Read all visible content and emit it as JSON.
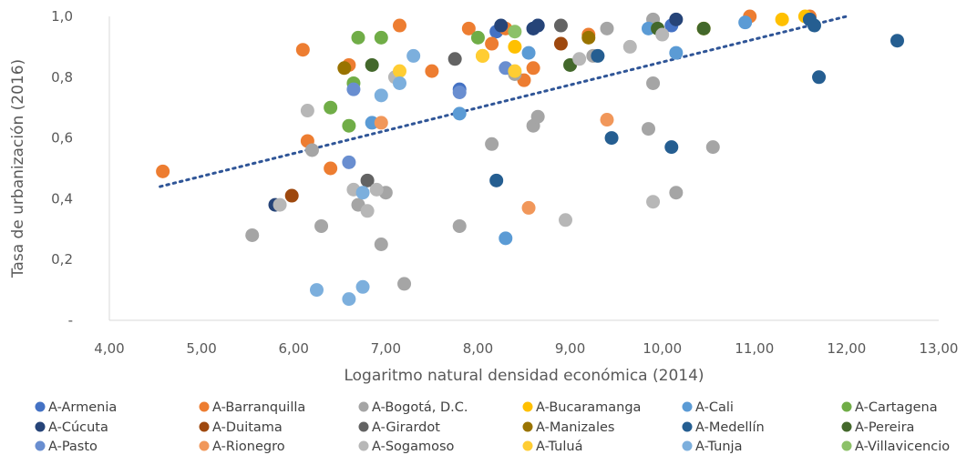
{
  "chart_data": {
    "type": "scatter",
    "xlabel": "Logaritmo natural densidad económica (2014)",
    "ylabel": "Tasa de urbanización (2016)",
    "xlim": [
      4.0,
      13.0
    ],
    "ylim": [
      0.0,
      1.0
    ],
    "x_ticks": [
      4.0,
      5.0,
      6.0,
      7.0,
      8.0,
      9.0,
      10.0,
      11.0,
      12.0,
      13.0
    ],
    "x_tick_labels": [
      "4,00",
      "5,00",
      "6,00",
      "7,00",
      "8,00",
      "9,00",
      "10,00",
      "11,00",
      "12,00",
      "13,00"
    ],
    "y_ticks": [
      0.0,
      0.2,
      0.4,
      0.6,
      0.8,
      1.0
    ],
    "y_tick_labels": [
      "-",
      "0,2",
      "0,4",
      "0,6",
      "0,8",
      "1,0"
    ],
    "grid": false,
    "legend_position": "bottom",
    "trendline": {
      "style": "dotted",
      "color": "#2f5597",
      "x": [
        4.55,
        12.0
      ],
      "y": [
        0.44,
        1.0
      ]
    },
    "series": [
      {
        "name": "A-Armenia",
        "color": "#4472c4",
        "points": [
          [
            8.2,
            0.95
          ],
          [
            8.65,
            0.97
          ],
          [
            10.1,
            0.97
          ],
          [
            8.6,
            0.96
          ],
          [
            7.8,
            0.76
          ]
        ]
      },
      {
        "name": "A-Barranquilla",
        "color": "#ed7d31",
        "points": [
          [
            4.58,
            0.49
          ],
          [
            6.1,
            0.89
          ],
          [
            6.15,
            0.59
          ],
          [
            6.4,
            0.5
          ],
          [
            6.6,
            0.84
          ],
          [
            7.15,
            0.97
          ],
          [
            7.5,
            0.82
          ],
          [
            7.9,
            0.96
          ],
          [
            8.15,
            0.91
          ],
          [
            8.3,
            0.96
          ],
          [
            8.6,
            0.83
          ],
          [
            8.5,
            0.79
          ],
          [
            9.2,
            0.94
          ],
          [
            10.95,
            1.0
          ],
          [
            11.6,
            1.0
          ]
        ]
      },
      {
        "name": "A-Bogotá, D.C.",
        "color": "#a5a5a5",
        "points": [
          [
            5.55,
            0.28
          ],
          [
            6.3,
            0.31
          ],
          [
            6.2,
            0.56
          ],
          [
            6.7,
            0.38
          ],
          [
            6.95,
            0.25
          ],
          [
            7.0,
            0.42
          ],
          [
            7.2,
            0.12
          ],
          [
            7.8,
            0.31
          ],
          [
            8.15,
            0.58
          ],
          [
            8.6,
            0.64
          ],
          [
            8.65,
            0.67
          ],
          [
            9.25,
            0.87
          ],
          [
            9.4,
            0.96
          ],
          [
            9.85,
            0.63
          ],
          [
            9.9,
            0.78
          ],
          [
            9.9,
            0.99
          ],
          [
            10.15,
            0.42
          ],
          [
            10.55,
            0.57
          ],
          [
            8.4,
            0.81
          ]
        ]
      },
      {
        "name": "A-Bucaramanga",
        "color": "#ffc000",
        "points": [
          [
            8.05,
            0.87
          ],
          [
            8.4,
            0.9
          ],
          [
            10.45,
            0.96
          ],
          [
            11.3,
            0.99
          ],
          [
            11.55,
            1.0
          ]
        ]
      },
      {
        "name": "A-Cali",
        "color": "#5b9bd5",
        "points": [
          [
            6.85,
            0.65
          ],
          [
            7.8,
            0.68
          ],
          [
            8.55,
            0.88
          ],
          [
            9.85,
            0.96
          ],
          [
            10.15,
            0.88
          ],
          [
            10.9,
            0.98
          ],
          [
            8.3,
            0.27
          ]
        ]
      },
      {
        "name": "A-Cartagena",
        "color": "#70ad47",
        "points": [
          [
            6.4,
            0.7
          ],
          [
            6.6,
            0.64
          ],
          [
            6.65,
            0.78
          ],
          [
            6.7,
            0.93
          ],
          [
            6.95,
            0.93
          ],
          [
            8.0,
            0.93
          ]
        ]
      },
      {
        "name": "A-Cúcuta",
        "color": "#264478",
        "points": [
          [
            5.8,
            0.38
          ],
          [
            8.25,
            0.97
          ],
          [
            8.6,
            0.96
          ],
          [
            8.65,
            0.97
          ],
          [
            10.15,
            0.99
          ]
        ]
      },
      {
        "name": "A-Duitama",
        "color": "#9e480e",
        "points": [
          [
            5.98,
            0.41
          ],
          [
            8.9,
            0.91
          ]
        ]
      },
      {
        "name": "A-Girardot",
        "color": "#636363",
        "points": [
          [
            6.8,
            0.46
          ],
          [
            7.75,
            0.86
          ],
          [
            8.9,
            0.97
          ]
        ]
      },
      {
        "name": "A-Manizales",
        "color": "#997300",
        "points": [
          [
            6.55,
            0.83
          ],
          [
            9.2,
            0.93
          ]
        ]
      },
      {
        "name": "A-Medellín",
        "color": "#255e91",
        "points": [
          [
            8.2,
            0.46
          ],
          [
            9.3,
            0.87
          ],
          [
            9.45,
            0.6
          ],
          [
            10.1,
            0.57
          ],
          [
            11.6,
            0.99
          ],
          [
            11.65,
            0.97
          ],
          [
            11.7,
            0.8
          ],
          [
            12.55,
            0.92
          ]
        ]
      },
      {
        "name": "A-Pereira",
        "color": "#43682b",
        "points": [
          [
            6.85,
            0.84
          ],
          [
            9.0,
            0.84
          ],
          [
            9.95,
            0.96
          ],
          [
            10.45,
            0.96
          ]
        ]
      },
      {
        "name": "A-Pasto",
        "color": "#698ed0",
        "points": [
          [
            6.65,
            0.76
          ],
          [
            6.6,
            0.52
          ],
          [
            8.3,
            0.83
          ],
          [
            7.8,
            0.75
          ]
        ]
      },
      {
        "name": "A-Rionegro",
        "color": "#f1975a",
        "points": [
          [
            6.95,
            0.65
          ],
          [
            8.55,
            0.37
          ],
          [
            9.4,
            0.66
          ]
        ]
      },
      {
        "name": "A-Sogamoso",
        "color": "#b7b7b7",
        "points": [
          [
            6.15,
            0.69
          ],
          [
            5.85,
            0.38
          ],
          [
            6.65,
            0.43
          ],
          [
            6.8,
            0.36
          ],
          [
            6.9,
            0.43
          ],
          [
            7.1,
            0.8
          ],
          [
            8.95,
            0.33
          ],
          [
            9.1,
            0.86
          ],
          [
            9.65,
            0.9
          ],
          [
            9.9,
            0.39
          ],
          [
            10.0,
            0.94
          ]
        ]
      },
      {
        "name": "A-Tuluá",
        "color": "#ffcd33",
        "points": [
          [
            7.15,
            0.82
          ],
          [
            8.05,
            0.87
          ],
          [
            8.4,
            0.82
          ]
        ]
      },
      {
        "name": "A-Tunja",
        "color": "#7cafdd",
        "points": [
          [
            6.25,
            0.1
          ],
          [
            6.6,
            0.07
          ],
          [
            6.75,
            0.11
          ],
          [
            6.75,
            0.42
          ],
          [
            6.95,
            0.74
          ],
          [
            7.15,
            0.78
          ],
          [
            7.3,
            0.87
          ]
        ]
      },
      {
        "name": "A-Villavicencio",
        "color": "#8cc168",
        "points": [
          [
            8.4,
            0.95
          ]
        ]
      }
    ]
  }
}
